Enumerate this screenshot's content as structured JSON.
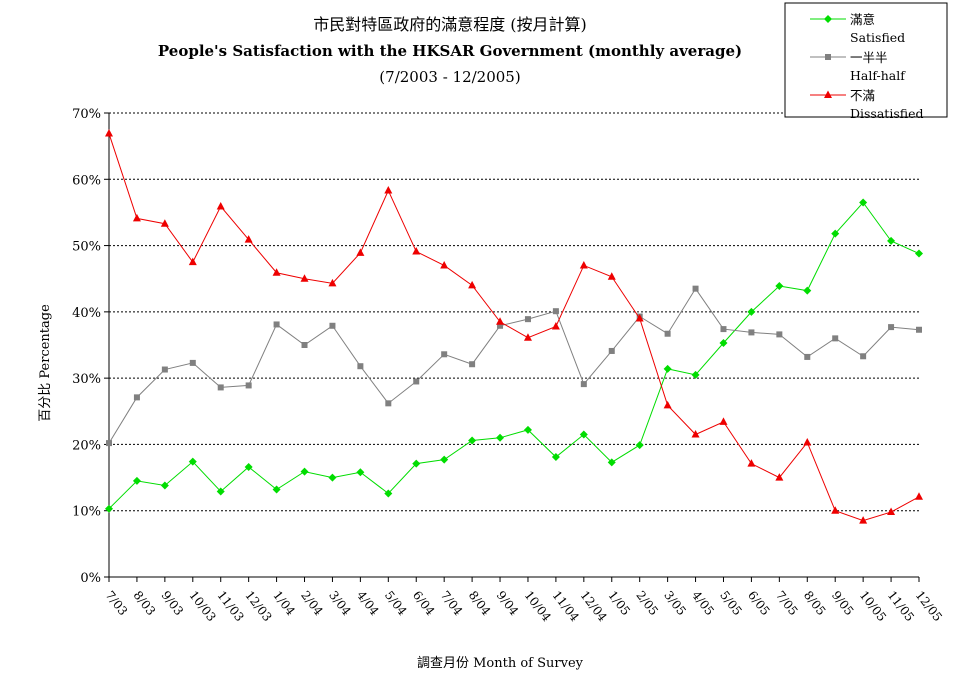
{
  "chart_data": {
    "type": "line",
    "title": "市民對特區政府的滿意程度 (按月計算)",
    "subtitle": "People's Satisfaction with the HKSAR Government (monthly average)",
    "period": "(7/2003 - 12/2005)",
    "xlabel": "調查月份 Month of Survey",
    "ylabel": "百分比 Percentage",
    "ylim": [
      0,
      70
    ],
    "yticks": [
      "0%",
      "10%",
      "20%",
      "30%",
      "40%",
      "50%",
      "60%",
      "70%"
    ],
    "grid": "horizontal dotted",
    "legend_position": "top-right",
    "categories": [
      "7/03",
      "8/03",
      "9/03",
      "10/03",
      "11/03",
      "12/03",
      "1/04",
      "2/04",
      "3/04",
      "4/04",
      "5/04",
      "6/04",
      "7/04",
      "8/04",
      "9/04",
      "10/04",
      "11/04",
      "12/04",
      "1/05",
      "2/05",
      "3/05",
      "4/05",
      "5/05",
      "6/05",
      "7/05",
      "8/05",
      "9/05",
      "10/05",
      "11/05",
      "12/05"
    ],
    "series": [
      {
        "name": "滿意",
        "name_en": "Satisfied",
        "color": "#00dd00",
        "marker": "diamond",
        "values": [
          10.3,
          14.5,
          13.8,
          17.4,
          12.9,
          16.6,
          13.2,
          15.9,
          15.0,
          15.8,
          12.6,
          17.1,
          17.7,
          20.6,
          21.0,
          22.2,
          18.1,
          21.5,
          17.3,
          19.9,
          31.4,
          30.5,
          35.3,
          40.0,
          43.9,
          43.2,
          51.8,
          56.5,
          50.7,
          48.8
        ]
      },
      {
        "name": "一半半",
        "name_en": "Half-half",
        "color": "#808080",
        "marker": "square",
        "values": [
          20.2,
          27.1,
          31.3,
          32.3,
          28.6,
          28.9,
          38.1,
          35.0,
          37.9,
          31.8,
          26.2,
          29.5,
          33.6,
          32.1,
          37.9,
          38.9,
          40.1,
          29.1,
          34.1,
          39.3,
          36.7,
          43.5,
          37.4,
          36.9,
          36.6,
          33.2,
          36.0,
          33.3,
          37.7,
          37.3
        ]
      },
      {
        "name": "不滿",
        "name_en": "Dissatisfied",
        "color": "#ee0000",
        "marker": "triangle",
        "values": [
          66.9,
          54.1,
          53.3,
          47.5,
          55.9,
          50.9,
          45.9,
          45.0,
          44.3,
          48.9,
          58.3,
          49.1,
          47.0,
          44.0,
          38.5,
          36.1,
          37.8,
          47.0,
          45.3,
          39.0,
          25.9,
          21.5,
          23.4,
          17.1,
          15.0,
          20.3,
          10.0,
          8.5,
          9.8,
          12.1
        ]
      }
    ]
  }
}
